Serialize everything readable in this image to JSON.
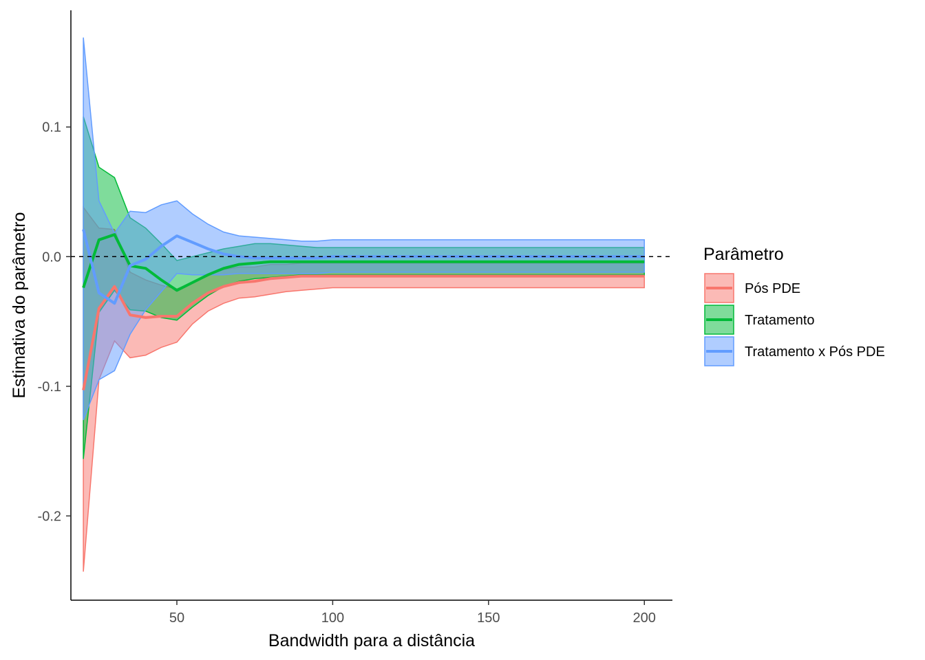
{
  "chart_data": {
    "type": "line",
    "title": "",
    "xlabel": "Bandwidth para a distância",
    "ylabel": "Estimativa do parâmetro",
    "xlim": [
      16,
      209
    ],
    "ylim": [
      -0.265,
      0.19
    ],
    "x_ticks": [
      50,
      100,
      150,
      200
    ],
    "y_ticks": [
      -0.2,
      -0.1,
      0.0,
      0.1
    ],
    "x_tick_labels": [
      "50",
      "100",
      "150",
      "200"
    ],
    "y_tick_labels": [
      "-0.2",
      "-0.1",
      "0.0",
      "0.1"
    ],
    "reference_line": {
      "y": 0,
      "style": "dashed",
      "color": "#000000"
    },
    "grid": false,
    "legend": {
      "title": "Parâmetro",
      "position": "right",
      "entries": [
        "Pós PDE",
        "Tratamento",
        "Tratamento x Pós PDE"
      ]
    },
    "x": [
      20,
      25,
      30,
      35,
      40,
      45,
      50,
      55,
      60,
      65,
      70,
      75,
      80,
      85,
      90,
      95,
      100,
      110,
      120,
      130,
      140,
      150,
      160,
      170,
      180,
      190,
      200
    ],
    "series": [
      {
        "name": "Pós PDE",
        "color": "#F8766D",
        "values": [
          -0.103,
          -0.04,
          -0.023,
          -0.045,
          -0.047,
          -0.046,
          -0.046,
          -0.036,
          -0.028,
          -0.023,
          -0.02,
          -0.019,
          -0.017,
          -0.016,
          -0.015,
          -0.015,
          -0.015,
          -0.015,
          -0.015,
          -0.015,
          -0.015,
          -0.015,
          -0.015,
          -0.015,
          -0.015,
          -0.015,
          -0.015
        ],
        "lower": [
          -0.243,
          -0.095,
          -0.065,
          -0.078,
          -0.076,
          -0.07,
          -0.066,
          -0.052,
          -0.042,
          -0.036,
          -0.032,
          -0.031,
          -0.029,
          -0.027,
          -0.026,
          -0.025,
          -0.024,
          -0.024,
          -0.024,
          -0.024,
          -0.024,
          -0.024,
          -0.024,
          -0.024,
          -0.024,
          -0.024,
          -0.024
        ],
        "upper": [
          0.038,
          0.022,
          0.021,
          -0.012,
          -0.018,
          -0.022,
          -0.025,
          -0.02,
          -0.014,
          -0.01,
          -0.008,
          -0.008,
          -0.006,
          -0.006,
          -0.005,
          -0.005,
          -0.005,
          -0.005,
          -0.005,
          -0.005,
          -0.005,
          -0.005,
          -0.005,
          -0.005,
          -0.005,
          -0.005,
          -0.005
        ]
      },
      {
        "name": "Tratamento",
        "color": "#00BA38",
        "values": [
          -0.024,
          0.013,
          0.017,
          -0.007,
          -0.009,
          -0.018,
          -0.026,
          -0.02,
          -0.014,
          -0.009,
          -0.006,
          -0.005,
          -0.004,
          -0.004,
          -0.004,
          -0.004,
          -0.004,
          -0.004,
          -0.004,
          -0.004,
          -0.004,
          -0.004,
          -0.004,
          -0.004,
          -0.004,
          -0.004,
          -0.004
        ],
        "lower": [
          -0.156,
          -0.043,
          -0.026,
          -0.041,
          -0.042,
          -0.047,
          -0.049,
          -0.039,
          -0.03,
          -0.023,
          -0.019,
          -0.017,
          -0.016,
          -0.015,
          -0.014,
          -0.014,
          -0.014,
          -0.014,
          -0.014,
          -0.014,
          -0.014,
          -0.014,
          -0.014,
          -0.014,
          -0.014,
          -0.014,
          -0.014
        ],
        "upper": [
          0.108,
          0.069,
          0.061,
          0.03,
          0.022,
          0.01,
          -0.003,
          0.0,
          0.003,
          0.006,
          0.008,
          0.01,
          0.01,
          0.009,
          0.008,
          0.007,
          0.007,
          0.007,
          0.007,
          0.007,
          0.007,
          0.007,
          0.007,
          0.007,
          0.007,
          0.007,
          0.007
        ]
      },
      {
        "name": "Tratamento x Pós PDE",
        "color": "#619CFF",
        "values": [
          0.021,
          -0.028,
          -0.036,
          -0.007,
          -0.002,
          0.008,
          0.016,
          0.011,
          0.006,
          0.002,
          0.0,
          -0.001,
          -0.001,
          -0.001,
          -0.001,
          -0.001,
          0.0,
          0.0,
          0.0,
          0.0,
          0.0,
          0.0,
          0.0,
          0.0,
          0.0,
          0.0,
          0.0
        ],
        "lower": [
          -0.126,
          -0.095,
          -0.088,
          -0.06,
          -0.041,
          -0.027,
          -0.013,
          -0.014,
          -0.014,
          -0.014,
          -0.013,
          -0.013,
          -0.013,
          -0.013,
          -0.013,
          -0.013,
          -0.012,
          -0.012,
          -0.012,
          -0.012,
          -0.012,
          -0.012,
          -0.012,
          -0.012,
          -0.012,
          -0.012,
          -0.012
        ],
        "upper": [
          0.169,
          0.043,
          0.018,
          0.035,
          0.034,
          0.04,
          0.043,
          0.033,
          0.025,
          0.019,
          0.016,
          0.015,
          0.014,
          0.013,
          0.012,
          0.012,
          0.013,
          0.013,
          0.013,
          0.013,
          0.013,
          0.013,
          0.013,
          0.013,
          0.013,
          0.013,
          0.013
        ]
      }
    ]
  }
}
